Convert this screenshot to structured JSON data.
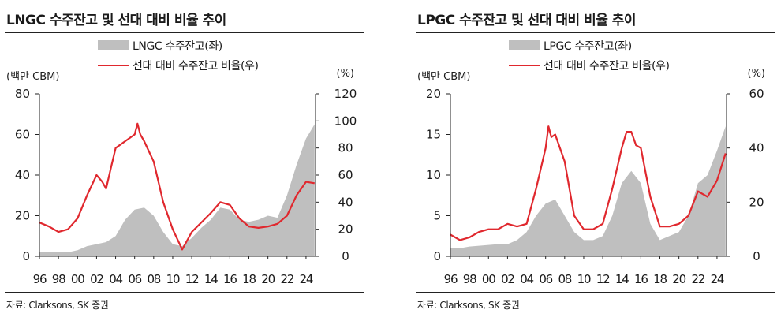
{
  "colors": {
    "area": "#bfbfbf",
    "line": "#e0282e",
    "axis": "#222222"
  },
  "charts": [
    {
      "title": "LNGC 수주잔고 및 선대 대비 비율 추이",
      "legend": {
        "area_label": "LNGC 수주잔고(좌)",
        "line_label": "선대 대비 수주잔고 비율(우)"
      },
      "left_unit": "(백만 CBM)",
      "right_unit": "(%)",
      "source": "자료: Clarksons, SK 증권"
    },
    {
      "title": "LPGC 수주잔고 및 선대 대비 비율 추이",
      "legend": {
        "area_label": "LPGC 수주잔고(좌)",
        "line_label": "선대 대비 수주잔고 비율(우)"
      },
      "left_unit": "(백만 CBM)",
      "right_unit": "(%)",
      "source": "자료: Clarksons, SK 증권"
    }
  ],
  "chart_data": [
    {
      "type": "area",
      "title": "LNGC 수주잔고 및 선대 대비 비율 추이",
      "x_ticks": [
        "96",
        "98",
        "00",
        "02",
        "04",
        "06",
        "08",
        "10",
        "12",
        "14",
        "16",
        "18",
        "20",
        "22",
        "24"
      ],
      "x_range": [
        1996,
        2025
      ],
      "y_left": {
        "label": "(백만 CBM)",
        "range": [
          0,
          80
        ],
        "ticks": [
          0,
          20,
          40,
          60,
          80
        ]
      },
      "y_right": {
        "label": "(%)",
        "range": [
          0,
          120
        ],
        "ticks": [
          0,
          20,
          40,
          60,
          80,
          100,
          120
        ]
      },
      "grid": false,
      "legend_position": "top-center",
      "series": [
        {
          "name": "LNGC 수주잔고(좌)",
          "type": "area",
          "axis": "left",
          "points": [
            [
              1996,
              2
            ],
            [
              1997,
              2
            ],
            [
              1998,
              2
            ],
            [
              1999,
              2
            ],
            [
              2000,
              3
            ],
            [
              2001,
              5
            ],
            [
              2002,
              6
            ],
            [
              2003,
              7
            ],
            [
              2004,
              10
            ],
            [
              2005,
              18
            ],
            [
              2006,
              23
            ],
            [
              2007,
              24
            ],
            [
              2008,
              20
            ],
            [
              2009,
              12
            ],
            [
              2010,
              6
            ],
            [
              2011,
              5
            ],
            [
              2012,
              9
            ],
            [
              2013,
              14
            ],
            [
              2014,
              18
            ],
            [
              2015,
              24
            ],
            [
              2016,
              23
            ],
            [
              2017,
              18
            ],
            [
              2018,
              17
            ],
            [
              2019,
              18
            ],
            [
              2020,
              20
            ],
            [
              2021,
              19
            ],
            [
              2022,
              30
            ],
            [
              2023,
              45
            ],
            [
              2024,
              58
            ],
            [
              2024.9,
              65
            ]
          ]
        },
        {
          "name": "선대 대비 수주잔고 비율(우)",
          "type": "line",
          "axis": "right",
          "points": [
            [
              1996,
              25
            ],
            [
              1997,
              22
            ],
            [
              1998,
              18
            ],
            [
              1999,
              20
            ],
            [
              2000,
              28
            ],
            [
              2001,
              45
            ],
            [
              2002,
              60
            ],
            [
              2002.6,
              55
            ],
            [
              2003,
              50
            ],
            [
              2003.5,
              65
            ],
            [
              2004,
              80
            ],
            [
              2005,
              85
            ],
            [
              2006,
              90
            ],
            [
              2006.3,
              98
            ],
            [
              2006.6,
              90
            ],
            [
              2007,
              85
            ],
            [
              2008,
              70
            ],
            [
              2009,
              40
            ],
            [
              2010,
              20
            ],
            [
              2011,
              5
            ],
            [
              2012,
              18
            ],
            [
              2013,
              25
            ],
            [
              2014,
              32
            ],
            [
              2015,
              40
            ],
            [
              2016,
              38
            ],
            [
              2017,
              28
            ],
            [
              2018,
              22
            ],
            [
              2019,
              21
            ],
            [
              2020,
              22
            ],
            [
              2021,
              24
            ],
            [
              2022,
              30
            ],
            [
              2023,
              45
            ],
            [
              2024,
              55
            ],
            [
              2024.9,
              54
            ]
          ]
        }
      ]
    },
    {
      "type": "area",
      "title": "LPGC 수주잔고 및 선대 대비 비율 추이",
      "x_ticks": [
        "96",
        "98",
        "00",
        "02",
        "04",
        "06",
        "08",
        "10",
        "12",
        "14",
        "16",
        "18",
        "20",
        "22",
        "24"
      ],
      "x_range": [
        1996,
        2025
      ],
      "y_left": {
        "label": "(백만 CBM)",
        "range": [
          0,
          20
        ],
        "ticks": [
          0,
          5,
          10,
          15,
          20
        ]
      },
      "y_right": {
        "label": "(%)",
        "range": [
          0,
          60
        ],
        "ticks": [
          0,
          20,
          40,
          60
        ]
      },
      "grid": false,
      "legend_position": "top-center",
      "series": [
        {
          "name": "LPGC 수주잔고(좌)",
          "type": "area",
          "axis": "left",
          "points": [
            [
              1996,
              1
            ],
            [
              1997,
              1
            ],
            [
              1998,
              1.2
            ],
            [
              1999,
              1.3
            ],
            [
              2000,
              1.4
            ],
            [
              2001,
              1.5
            ],
            [
              2002,
              1.5
            ],
            [
              2003,
              2
            ],
            [
              2004,
              3
            ],
            [
              2005,
              5
            ],
            [
              2006,
              6.5
            ],
            [
              2007,
              7
            ],
            [
              2008,
              5
            ],
            [
              2009,
              3
            ],
            [
              2010,
              2
            ],
            [
              2011,
              2
            ],
            [
              2012,
              2.5
            ],
            [
              2013,
              5
            ],
            [
              2014,
              9
            ],
            [
              2015,
              10.5
            ],
            [
              2016,
              9
            ],
            [
              2017,
              4
            ],
            [
              2018,
              2
            ],
            [
              2019,
              2.5
            ],
            [
              2020,
              3
            ],
            [
              2021,
              5
            ],
            [
              2022,
              9
            ],
            [
              2023,
              10
            ],
            [
              2024,
              13
            ],
            [
              2024.9,
              16
            ]
          ]
        },
        {
          "name": "선대 대비 수주잔고 비율(우)",
          "type": "line",
          "axis": "right",
          "points": [
            [
              1996,
              8
            ],
            [
              1997,
              6
            ],
            [
              1998,
              7
            ],
            [
              1999,
              9
            ],
            [
              2000,
              10
            ],
            [
              2001,
              10
            ],
            [
              2002,
              12
            ],
            [
              2003,
              11
            ],
            [
              2004,
              12
            ],
            [
              2005,
              25
            ],
            [
              2006,
              40
            ],
            [
              2006.3,
              48
            ],
            [
              2006.6,
              44
            ],
            [
              2007,
              45
            ],
            [
              2008,
              35
            ],
            [
              2009,
              15
            ],
            [
              2010,
              10
            ],
            [
              2011,
              10
            ],
            [
              2012,
              12
            ],
            [
              2013,
              25
            ],
            [
              2014,
              40
            ],
            [
              2014.5,
              46
            ],
            [
              2015,
              46
            ],
            [
              2015.5,
              41
            ],
            [
              2016,
              40
            ],
            [
              2017,
              22
            ],
            [
              2018,
              11
            ],
            [
              2019,
              11
            ],
            [
              2020,
              12
            ],
            [
              2021,
              15
            ],
            [
              2022,
              24
            ],
            [
              2023,
              22
            ],
            [
              2024,
              28
            ],
            [
              2024.9,
              38
            ]
          ]
        }
      ]
    }
  ]
}
